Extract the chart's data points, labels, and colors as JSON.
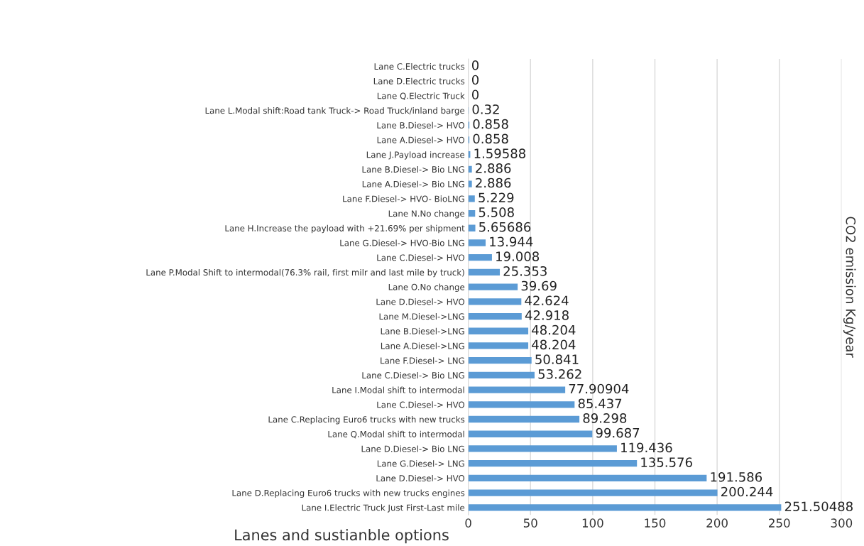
{
  "chart_data": {
    "type": "bar",
    "orientation": "horizontal",
    "categories": [
      "Lane C.Electric trucks",
      "Lane D.Electric trucks",
      "Lane Q.Electric Truck",
      "Lane L.Modal shift:Road tank Truck-> Road Truck/inland barge",
      "Lane B.Diesel-> HVO",
      "Lane A.Diesel-> HVO",
      "Lane J.Payload increase",
      "Lane B.Diesel-> Bio LNG",
      "Lane A.Diesel-> Bio LNG",
      "Lane F.Diesel-> HVO- BioLNG",
      "Lane N.No change",
      "Lane H.Increase the payload with +21.69% per shipment",
      "Lane G.Diesel-> HVO-Bio LNG",
      "Lane C.Diesel-> HVO",
      "Lane P.Modal Shift to intermodal(76.3% rail, first milr and last mile by truck)",
      "Lane O.No change",
      "Lane D.Diesel-> HVO",
      "Lane M.Diesel->LNG",
      "Lane B.Diesel->LNG",
      "Lane A.Diesel->LNG",
      "Lane F.Diesel-> LNG",
      "Lane C.Diesel-> Bio LNG",
      "Lane I.Modal shift to intermodal",
      "Lane C.Diesel-> HVO",
      "Lane C.Replacing Euro6 trucks with new trucks",
      "Lane Q.Modal shift to intermodal",
      "Lane D.Diesel-> Bio LNG",
      "Lane G.Diesel-> LNG",
      "Lane D.Diesel-> HVO",
      "Lane D.Replacing Euro6 trucks with new trucks engines",
      "Lane I.Electric Truck Just First-Last mile"
    ],
    "values": [
      0,
      0,
      0,
      0.32,
      0.858,
      0.858,
      1.59588,
      2.886,
      2.886,
      5.229,
      5.508,
      5.65686,
      13.944,
      19.008,
      25.353,
      39.69,
      42.624,
      42.918,
      48.204,
      48.204,
      50.841,
      53.262,
      77.90904,
      85.437,
      89.298,
      99.687,
      119.436,
      135.576,
      191.586,
      200.244,
      251.50488
    ],
    "color": "#5b9bd5",
    "xlim": [
      0,
      300
    ],
    "xticks": [
      0,
      50,
      100,
      150,
      200,
      250,
      300
    ],
    "grid": "x",
    "data_labels": true,
    "y2label": "CO2 emission Kg/year",
    "xlabel": "Lanes and sustianble options"
  }
}
